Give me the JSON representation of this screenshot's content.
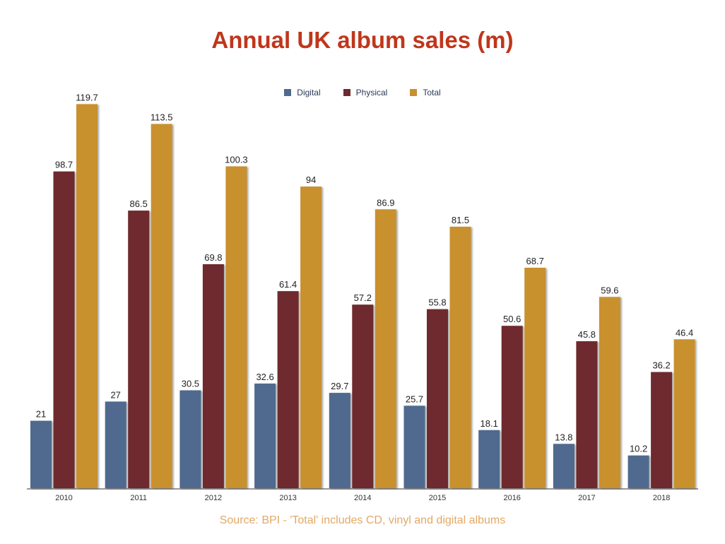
{
  "chart_data": {
    "type": "bar",
    "title": "Annual UK album sales (m)",
    "source": "Source: BPI - 'Total' includes CD, vinyl and digital albums",
    "categories": [
      "2010",
      "2011",
      "2012",
      "2013",
      "2014",
      "2015",
      "2016",
      "2017",
      "2018"
    ],
    "series": [
      {
        "name": "Digital",
        "color": "#4f6a8e",
        "values": [
          21,
          27,
          30.5,
          32.6,
          29.7,
          25.7,
          18.1,
          13.8,
          10.2
        ]
      },
      {
        "name": "Physical",
        "color": "#6e2a2e",
        "values": [
          98.7,
          86.5,
          69.8,
          61.4,
          57.2,
          55.8,
          50.6,
          45.8,
          36.2
        ]
      },
      {
        "name": "Total",
        "color": "#c9902f",
        "values": [
          119.7,
          113.5,
          100.3,
          94,
          86.9,
          81.5,
          68.7,
          59.6,
          46.4
        ]
      }
    ],
    "ylim": [
      0,
      120
    ],
    "grid": false,
    "legend_position": "top"
  }
}
